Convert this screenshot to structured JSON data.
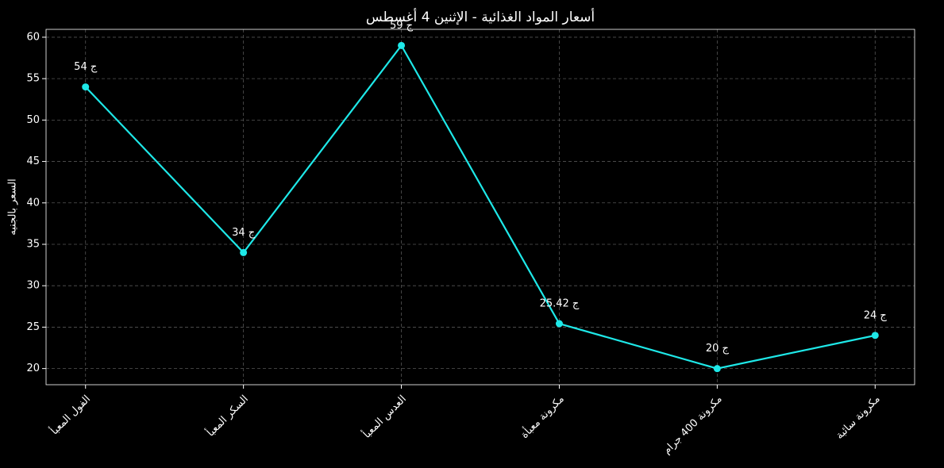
{
  "chart_data": {
    "type": "line",
    "title": "أسعار المواد الغذائية - الإثنين 4 أغسطس",
    "ylabel": "السعر بالجنيه",
    "categories": [
      "الفول المعبأ",
      "السكر المعبأ",
      "العدس المعبأ",
      "مكرونة معبأة",
      "مكرونة 400 جرام",
      "مكرونة سائبة"
    ],
    "series": [
      {
        "name": "السعر",
        "color": "#1ee8e8",
        "values": [
          54,
          34,
          59,
          25.42,
          20,
          24
        ],
        "value_labels": [
          "54 ج",
          "34 ج",
          "59 ج",
          "25.42 ج",
          "20 ج",
          "24 ج"
        ]
      }
    ],
    "ylim": [
      18.05,
      60.95
    ],
    "yticks": [
      20,
      25,
      30,
      35,
      40,
      45,
      50,
      55,
      60
    ],
    "grid": true
  }
}
